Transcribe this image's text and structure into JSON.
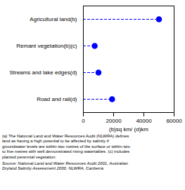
{
  "chart_data": {
    "type": "lollipop",
    "categories": [
      "Agricultural land(b)",
      "Remant vegetation(b)(c)",
      "Streams and lake edges(d)",
      "Road and rail(d)"
    ],
    "values": [
      50000,
      7500,
      10000,
      19000
    ],
    "color": "#0000FF",
    "marker": "circle",
    "line_style": "dashed",
    "xlim": [
      0,
      60000
    ],
    "xticks": [
      0,
      20000,
      40000,
      60000
    ],
    "xlabel": "(b)sq km/ (d)km",
    "grid": false,
    "footnotes": [
      "(a) The National Land and Water Resources Audit (NLWRA) defines",
      "land as having a high potential to be affected by salinity if",
      "groundwater levels are within two metres of the surface or within two",
      "to five metres with well demonstrated rising watertables. (c) includes",
      "planted perennial vegetation."
    ],
    "source": [
      "Source: National Land and Water Resources Audit 2001, Australian",
      "Dryland Salinity Assessment 2000, NLWRA, Canberra."
    ]
  }
}
